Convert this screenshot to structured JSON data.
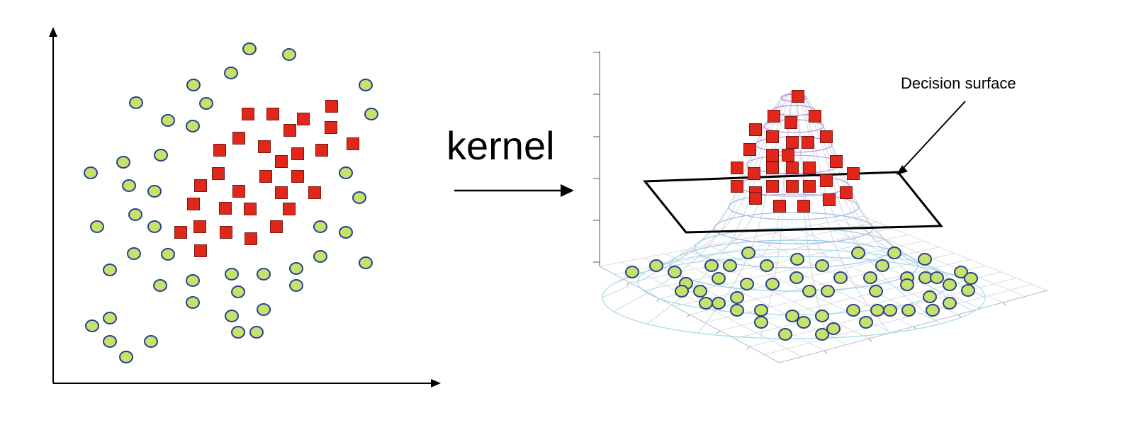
{
  "labels": {
    "kernel": "kernel",
    "decision_surface": "Decision surface"
  },
  "colors": {
    "circle_fill": "#c5e26b",
    "circle_stroke": "#2b3f8f",
    "square_fill": "#e0271b",
    "square_stroke": "#7a1710",
    "mesh_outer": "#cfd5dc",
    "mesh_rings": [
      "#a6dceb",
      "#9ccfe8",
      "#a9bbe8",
      "#b6a6e6",
      "#c38ee6",
      "#c77be4"
    ]
  }
}
